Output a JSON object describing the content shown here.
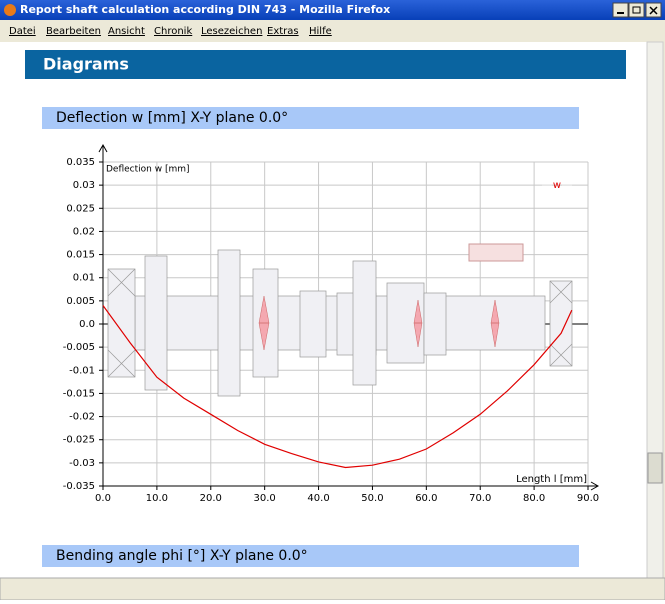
{
  "window": {
    "title": "Report shaft calculation according DIN 743 - Mozilla Firefox"
  },
  "menu": [
    "Datei",
    "Bearbeiten",
    "Ansicht",
    "Chronik",
    "Lesezeichen",
    "Extras",
    "Hilfe"
  ],
  "header": {
    "title": "Diagrams"
  },
  "sections": [
    "Deflection w [mm] X-Y plane 0.0°",
    "Bending angle phi [°] X-Y plane 0.0°"
  ],
  "chart_data": {
    "type": "line",
    "y_label": "Deflection w [mm]",
    "x_label": "Length l [mm]",
    "x": [
      0,
      5,
      10,
      15,
      20,
      25,
      30,
      35,
      40,
      45,
      50,
      55,
      60,
      65,
      70,
      75,
      80,
      85,
      87
    ],
    "series": [
      {
        "name": "w",
        "color": "#e00000",
        "values": [
          0.004,
          -0.004,
          -0.0115,
          -0.016,
          -0.0195,
          -0.023,
          -0.026,
          -0.028,
          -0.0298,
          -0.031,
          -0.0305,
          -0.0292,
          -0.027,
          -0.0235,
          -0.0195,
          -0.0145,
          -0.0088,
          -0.002,
          0.003
        ]
      }
    ],
    "xlim": [
      0,
      90
    ],
    "ylim": [
      -0.035,
      0.035
    ],
    "xticks": [
      {
        "value": 0,
        "label": "0.0"
      },
      {
        "value": 10,
        "label": "10.0"
      },
      {
        "value": 20,
        "label": "20.0"
      },
      {
        "value": 30,
        "label": "30.0"
      },
      {
        "value": 40,
        "label": "40.0"
      },
      {
        "value": 50,
        "label": "50.0"
      },
      {
        "value": 60,
        "label": "60.0"
      },
      {
        "value": 70,
        "label": "70.0"
      },
      {
        "value": 80,
        "label": "80.0"
      },
      {
        "value": 90,
        "label": "90.0"
      }
    ],
    "yticks": [
      -0.035,
      -0.03,
      -0.025,
      -0.02,
      -0.015,
      -0.01,
      -0.005,
      {
        "value": 0,
        "label": "0.0"
      },
      0.005,
      0.01,
      0.015,
      0.02,
      0.025,
      0.03,
      0.035
    ],
    "grid": true
  }
}
